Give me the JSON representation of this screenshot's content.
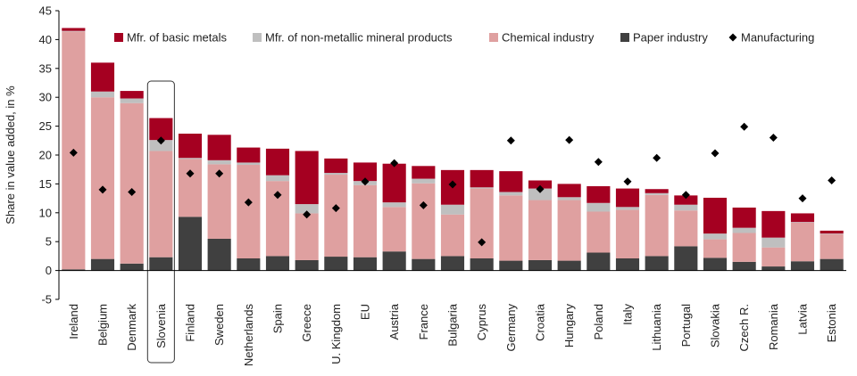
{
  "chart_data": {
    "type": "bar",
    "stacked": true,
    "ylabel": "Share in value added, in %",
    "ylim": [
      -5,
      45
    ],
    "yticks": [
      -5,
      0,
      5,
      10,
      15,
      20,
      25,
      30,
      35,
      40,
      45
    ],
    "grid": false,
    "legend_position": "top",
    "highlight_category": "Slovenia",
    "categories": [
      "Ireland",
      "Belgium",
      "Denmark",
      "Slovenia",
      "Finland",
      "Sweden",
      "Netherlands",
      "Spain",
      "Greece",
      "U. Kingdom",
      "EU",
      "Austria",
      "France",
      "Bulgaria",
      "Cyprus",
      "Germany",
      "Croatia",
      "Hungary",
      "Poland",
      "Italy",
      "Lithuania",
      "Portugal",
      "Slovakia",
      "Czech R.",
      "Romania",
      "Latvia",
      "Estonia"
    ],
    "series": [
      {
        "name": "Paper industry",
        "kind": "bar",
        "color": "#404040",
        "values": [
          0.2,
          2.0,
          1.2,
          2.3,
          9.3,
          5.5,
          2.1,
          2.5,
          1.8,
          2.4,
          2.3,
          3.3,
          2.0,
          2.5,
          2.1,
          1.7,
          1.8,
          1.7,
          3.1,
          2.1,
          2.5,
          4.2,
          2.2,
          1.5,
          0.7,
          1.6,
          2.0
        ]
      },
      {
        "name": "Chemical industry",
        "kind": "bar",
        "color": "#dfa0a0",
        "values": [
          41.2,
          28.0,
          27.8,
          18.4,
          10.0,
          12.9,
          16.2,
          13.0,
          8.1,
          14.2,
          12.5,
          7.7,
          13.1,
          7.2,
          12.1,
          11.3,
          10.4,
          10.5,
          7.1,
          8.4,
          10.6,
          6.2,
          3.2,
          5.0,
          3.3,
          6.7,
          4.3
        ]
      },
      {
        "name": "Mfr. of non-metallic mineral products",
        "kind": "bar",
        "color": "#bfbfbf",
        "values": [
          0.1,
          1.0,
          0.8,
          1.9,
          0.2,
          0.7,
          0.4,
          1.0,
          1.6,
          0.3,
          0.7,
          0.8,
          0.8,
          1.7,
          0.2,
          0.6,
          2.0,
          0.5,
          1.5,
          0.5,
          0.3,
          1.0,
          1.0,
          0.9,
          1.7,
          0.1,
          0.1
        ]
      },
      {
        "name": "Mfr. of basic metals",
        "kind": "bar",
        "color": "#a50021",
        "values": [
          0.5,
          5.0,
          1.3,
          3.8,
          4.2,
          4.4,
          2.6,
          4.6,
          9.2,
          2.5,
          3.2,
          6.7,
          2.2,
          6.0,
          3.0,
          3.6,
          1.4,
          2.3,
          2.9,
          3.2,
          0.7,
          1.6,
          6.2,
          3.5,
          4.6,
          1.5,
          0.5
        ]
      },
      {
        "name": "Manufacturing",
        "kind": "marker",
        "color": "#000000",
        "values": [
          20.4,
          14.0,
          13.6,
          22.5,
          16.8,
          16.8,
          11.8,
          13.1,
          9.7,
          10.8,
          15.4,
          18.6,
          11.3,
          14.9,
          4.9,
          22.5,
          14.1,
          22.6,
          18.8,
          15.4,
          19.5,
          13.1,
          20.3,
          24.9,
          23.0,
          12.5,
          15.6
        ]
      }
    ]
  }
}
